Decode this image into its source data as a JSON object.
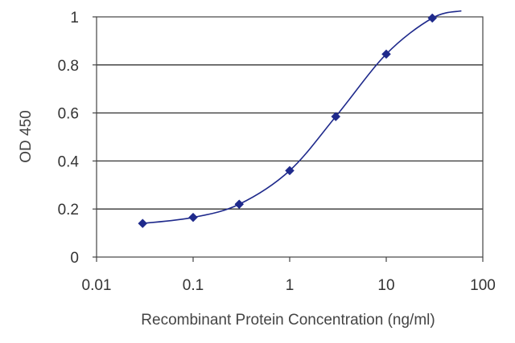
{
  "chart_data": {
    "type": "line",
    "xscale": "log",
    "xlim": [
      0.01,
      100
    ],
    "ylim": [
      0,
      1
    ],
    "xlabel": "Recombinant Protein Concentration (ng/ml)",
    "ylabel": "OD 450",
    "x_ticks": [
      0.01,
      0.1,
      1,
      10,
      100
    ],
    "x_tick_labels": [
      "0.01",
      "0.1",
      "1",
      "10",
      "100"
    ],
    "y_ticks": [
      0,
      0.2,
      0.4,
      0.6,
      0.8,
      1
    ],
    "y_tick_labels": [
      "0",
      "0.2",
      "0.4",
      "0.6",
      "0.8",
      "1"
    ],
    "grid": "horizontal",
    "series": [
      {
        "x": [
          0.03,
          0.1,
          0.3,
          1,
          3,
          10,
          30
        ],
        "y": [
          0.14,
          0.165,
          0.22,
          0.36,
          0.585,
          0.845,
          0.995
        ],
        "color": "#1f2a8c",
        "marker": "diamond",
        "curve": "smooth",
        "curve_extends_to_x": 60,
        "curve_end_y": 1.025
      }
    ]
  }
}
